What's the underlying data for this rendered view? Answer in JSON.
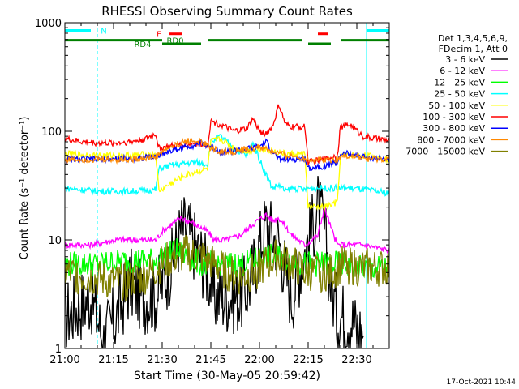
{
  "chart_data": {
    "type": "line",
    "title": "RHESSI Observing Summary Count Rates",
    "xlabel": "Start Time (30-May-05 20:59:42)",
    "ylabel": "Count Rate (s⁻¹ detector⁻¹)",
    "y_scale": "log",
    "ylim": [
      1,
      1000
    ],
    "xlim": [
      0,
      100
    ],
    "x_unit": "minutes after 21:00",
    "x_ticks": [
      {
        "label": "21:00",
        "value": 0
      },
      {
        "label": "21:15",
        "value": 15
      },
      {
        "label": "21:30",
        "value": 30
      },
      {
        "label": "21:45",
        "value": 45
      },
      {
        "label": "22:00",
        "value": 60
      },
      {
        "label": "22:15",
        "value": 75
      },
      {
        "label": "22:30",
        "value": 90
      }
    ],
    "y_ticks": [
      {
        "label": "1",
        "value": 1
      },
      {
        "label": "10",
        "value": 10
      },
      {
        "label": "100",
        "value": 100
      },
      {
        "label": "1000",
        "value": 1000
      }
    ],
    "legend_header": [
      "Det 1,3,4,5,6,9,",
      "FDecim 1, Att 0"
    ],
    "series": [
      {
        "name": "3 - 6 keV",
        "color": "#000000",
        "x": [
          0,
          8,
          12,
          16,
          20,
          24,
          28,
          30,
          33,
          36,
          38,
          40,
          42,
          44,
          46,
          48,
          50,
          52,
          54,
          56,
          58,
          60,
          62,
          64,
          66,
          68,
          70,
          72,
          74,
          76,
          78,
          80,
          82,
          84,
          86,
          88,
          90,
          92
        ],
        "values": [
          2.0,
          3.0,
          1.2,
          2.0,
          4.0,
          3.0,
          3.0,
          4.0,
          6.0,
          13.0,
          12.0,
          9.0,
          7.0,
          5.0,
          3.0,
          3.0,
          3.0,
          3.0,
          3.0,
          3.5,
          5.0,
          9.0,
          14.0,
          11.0,
          10.0,
          5.0,
          3.0,
          5.0,
          8.0,
          12.0,
          20.0,
          12.0,
          4.0,
          2.0,
          2.0,
          2.0,
          1.5,
          1.5
        ]
      },
      {
        "name": "6 - 12 keV",
        "color": "#ff00ff",
        "x": [
          0,
          8,
          16,
          24,
          28,
          30,
          33,
          36,
          40,
          44,
          46,
          50,
          54,
          58,
          62,
          64,
          66,
          70,
          74,
          78,
          80,
          82,
          84,
          88,
          92,
          100
        ],
        "values": [
          9,
          9,
          10,
          10,
          10,
          12,
          14,
          16,
          14,
          12,
          10,
          10,
          11,
          14,
          17,
          15,
          16,
          11,
          9,
          11,
          20,
          13,
          9,
          9,
          9,
          8
        ]
      },
      {
        "name": "12 - 25 keV",
        "color": "#00ff00",
        "x": [
          0,
          10,
          20,
          28,
          30,
          34,
          38,
          42,
          46,
          50,
          54,
          58,
          62,
          66,
          70,
          74,
          78,
          82,
          86,
          90,
          94,
          100
        ],
        "values": [
          6,
          6,
          6.5,
          6.5,
          7,
          8,
          7,
          6,
          6,
          6,
          6,
          6.5,
          7,
          7,
          6.5,
          6,
          6,
          6,
          6,
          5.5,
          5.5,
          5.5
        ]
      },
      {
        "name": "25 - 50 keV",
        "color": "#00ffff",
        "x": [
          0,
          10,
          20,
          28,
          29,
          32,
          36,
          40,
          44,
          45,
          48,
          52,
          56,
          58,
          60,
          62,
          64,
          66,
          68,
          70,
          74,
          75,
          80,
          84,
          88,
          92,
          96,
          100
        ],
        "values": [
          30,
          28,
          28,
          29,
          45,
          48,
          50,
          52,
          50,
          80,
          90,
          70,
          60,
          80,
          55,
          40,
          30,
          32,
          28,
          30,
          29,
          30,
          30,
          30,
          30,
          29,
          28,
          27
        ]
      },
      {
        "name": "50 - 100 keV",
        "color": "#ffff00",
        "x": [
          0,
          10,
          20,
          28,
          29,
          32,
          36,
          40,
          44,
          45,
          48,
          52,
          56,
          60,
          64,
          68,
          70,
          74,
          75,
          80,
          84,
          85,
          88,
          92,
          96,
          100
        ],
        "values": [
          62,
          60,
          60,
          62,
          28,
          32,
          38,
          42,
          45,
          80,
          85,
          70,
          65,
          70,
          66,
          62,
          62,
          62,
          20,
          20,
          22,
          60,
          60,
          60,
          58,
          55
        ]
      },
      {
        "name": "100 - 300 keV",
        "color": "#ff0000",
        "x": [
          0,
          5,
          10,
          15,
          20,
          25,
          28,
          29,
          32,
          36,
          40,
          44,
          45,
          48,
          52,
          56,
          58,
          60,
          62,
          64,
          66,
          68,
          70,
          74,
          75,
          80,
          84,
          85,
          88,
          92,
          96,
          100
        ],
        "values": [
          85,
          80,
          78,
          78,
          80,
          85,
          95,
          70,
          72,
          75,
          78,
          75,
          125,
          115,
          100,
          105,
          130,
          100,
          95,
          110,
          175,
          115,
          110,
          110,
          52,
          55,
          60,
          110,
          115,
          90,
          85,
          82
        ]
      },
      {
        "name": "300 - 800 keV",
        "color": "#0000ff",
        "x": [
          0,
          10,
          20,
          28,
          30,
          34,
          38,
          42,
          45,
          48,
          52,
          56,
          60,
          62,
          64,
          66,
          70,
          74,
          75,
          80,
          84,
          85,
          88,
          92,
          96,
          100
        ],
        "values": [
          55,
          55,
          56,
          58,
          62,
          68,
          72,
          78,
          72,
          65,
          66,
          68,
          72,
          80,
          65,
          55,
          55,
          56,
          46,
          48,
          52,
          62,
          62,
          58,
          56,
          55
        ]
      },
      {
        "name": "800 - 7000 keV",
        "color": "#ff8800",
        "x": [
          0,
          10,
          20,
          28,
          30,
          34,
          38,
          42,
          45,
          48,
          52,
          56,
          60,
          64,
          68,
          72,
          75,
          80,
          84,
          85,
          88,
          92,
          96,
          100
        ],
        "values": [
          55,
          55,
          55,
          58,
          65,
          75,
          82,
          80,
          70,
          65,
          65,
          68,
          72,
          65,
          60,
          58,
          55,
          55,
          55,
          58,
          60,
          56,
          55,
          55
        ]
      },
      {
        "name": "7000 - 15000 keV",
        "color": "#808000",
        "x": [
          0,
          8,
          16,
          24,
          30,
          34,
          38,
          42,
          46,
          50,
          54,
          58,
          62,
          66,
          70,
          74,
          78,
          82,
          86,
          90,
          94,
          100
        ],
        "values": [
          5,
          4.5,
          4,
          4.5,
          6,
          7,
          7.5,
          7,
          6,
          5,
          4.5,
          5,
          6,
          7,
          6,
          5,
          5,
          5,
          6,
          5.5,
          5.5,
          5.5
        ]
      }
    ],
    "annotations": [
      {
        "label": "N",
        "y": 850,
        "color": "#00ffff",
        "x_label": 12,
        "bars": [
          [
            0,
            8
          ],
          [
            93,
            100
          ]
        ]
      },
      {
        "label": "F",
        "y": 790,
        "color": "#ff0000",
        "x_label": 29,
        "bars": [
          [
            32,
            36
          ],
          [
            78,
            81
          ]
        ]
      },
      {
        "label": "RD0",
        "y": 690,
        "color": "#008000",
        "x_label": 34,
        "bars": [
          [
            0,
            30
          ],
          [
            44,
            73
          ],
          [
            85,
            100
          ]
        ]
      },
      {
        "label": "RD4",
        "y": 640,
        "color": "#008000",
        "x_label": 24,
        "bars": [
          [
            30,
            42
          ],
          [
            75,
            82
          ]
        ]
      }
    ],
    "vertical_markers": [
      {
        "x": 0,
        "style": "solid",
        "color": "#00ffff"
      },
      {
        "x": 10,
        "style": "dashed",
        "color": "#00ffff"
      },
      {
        "x": 93,
        "style": "solid",
        "color": "#00ffff"
      },
      {
        "x": 100,
        "style": "dashed",
        "color": "#00ffff"
      }
    ],
    "grid": false,
    "legend_position": "right"
  },
  "footer": {
    "timestamp": "17-Oct-2021 10:44"
  }
}
